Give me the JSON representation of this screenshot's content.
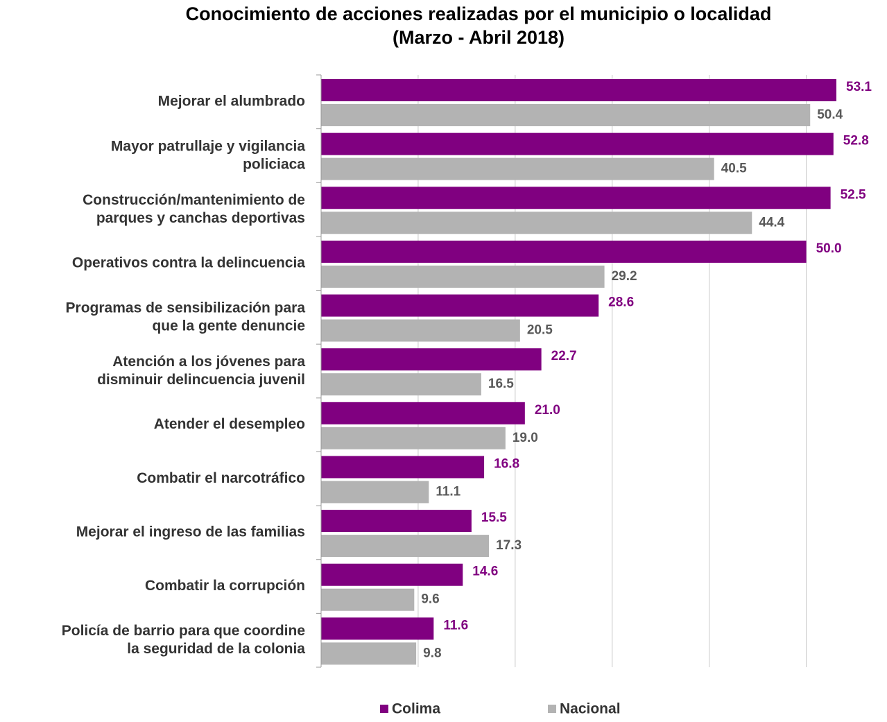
{
  "chart_data": {
    "type": "barh",
    "title": "Conocimiento de acciones realizadas por el municipio o localidad",
    "subtitle": "(Marzo - Abril 2018)",
    "categories": [
      "Mejorar el alumbrado",
      "Mayor patrullaje y vigilancia\npoliciaca",
      "Construcción/mantenimiento de\nparques y canchas deportivas",
      "Operativos contra la delincuencia",
      "Programas de sensibilización para\nque la gente denuncie",
      "Atención a los jóvenes para\ndisminuir delincuencia juvenil",
      "Atender el desempleo",
      "Combatir el narcotráfico",
      "Mejorar el ingreso de las familias",
      "Combatir la corrupción",
      "Policía de barrio para que coordine\nla seguridad de la colonia"
    ],
    "series": [
      {
        "name": "Colima",
        "color": "#800080",
        "values": [
          53.1,
          52.8,
          52.5,
          50.0,
          28.6,
          22.7,
          21.0,
          16.8,
          15.5,
          14.6,
          11.6
        ],
        "value_labels": [
          "53.1",
          "52.8",
          "52.5",
          "50.0",
          "28.6",
          "22.7",
          "21.0",
          "16.8",
          "15.5",
          "14.6",
          "11.6"
        ]
      },
      {
        "name": "Nacional",
        "color": "#b3b3b3",
        "values": [
          50.4,
          40.5,
          44.4,
          29.2,
          20.5,
          16.5,
          19.0,
          11.1,
          17.3,
          9.6,
          9.8
        ],
        "value_labels": [
          "50.4",
          "40.5",
          "44.4",
          "29.2",
          "20.5",
          "16.5",
          "19.0",
          "11.1",
          "17.3",
          "9.6",
          "9.8"
        ]
      }
    ],
    "xlim": [
      0,
      60
    ],
    "xticks": [
      0,
      10,
      20,
      30,
      40,
      50
    ],
    "grid": true,
    "legend": "bottom"
  }
}
